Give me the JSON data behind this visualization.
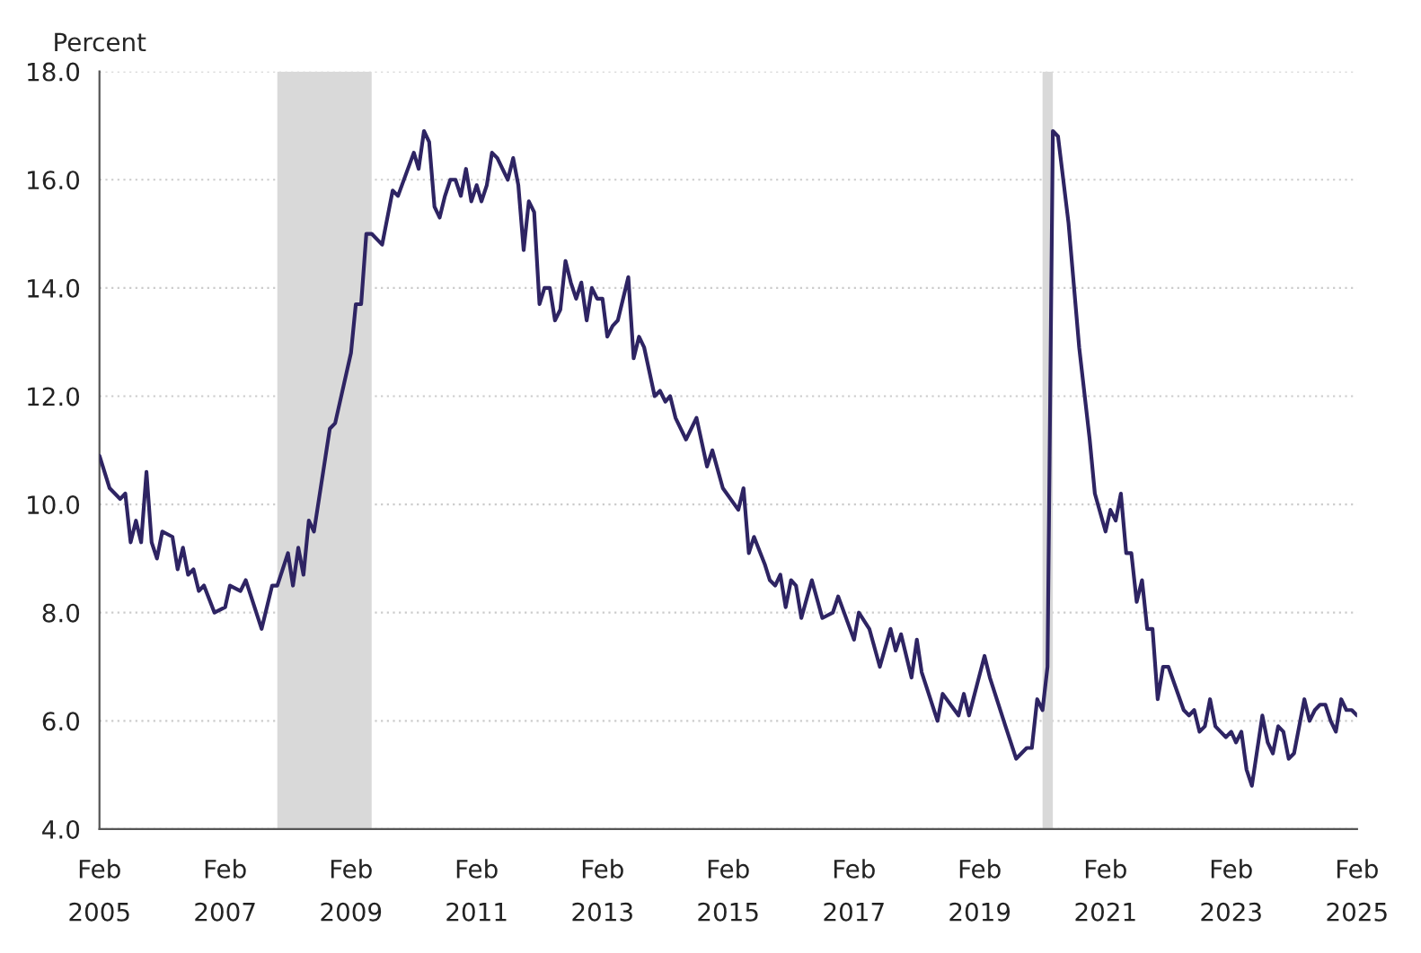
{
  "chart_data": {
    "type": "line",
    "ylabel": "Percent",
    "x": [
      "2005-02",
      "2005-04",
      "2005-06",
      "2005-07",
      "2005-08",
      "2005-09",
      "2005-10",
      "2005-11",
      "2005-12",
      "2006-01",
      "2006-02",
      "2006-04",
      "2006-05",
      "2006-06",
      "2006-07",
      "2006-08",
      "2006-09",
      "2006-10",
      "2006-12",
      "2007-02",
      "2007-03",
      "2007-05",
      "2007-06",
      "2007-09",
      "2007-11",
      "2007-12",
      "2008-02",
      "2008-03",
      "2008-04",
      "2008-05",
      "2008-06",
      "2008-07",
      "2008-10",
      "2008-11",
      "2009-02",
      "2009-03",
      "2009-04",
      "2009-05",
      "2009-06",
      "2009-08",
      "2009-10",
      "2009-11",
      "2010-02",
      "2010-03",
      "2010-04",
      "2010-05",
      "2010-06",
      "2010-07",
      "2010-08",
      "2010-09",
      "2010-10",
      "2010-11",
      "2010-12",
      "2011-01",
      "2011-02",
      "2011-03",
      "2011-04",
      "2011-05",
      "2011-06",
      "2011-07",
      "2011-08",
      "2011-09",
      "2011-10",
      "2011-11",
      "2011-12",
      "2012-01",
      "2012-02",
      "2012-03",
      "2012-04",
      "2012-05",
      "2012-06",
      "2012-07",
      "2012-08",
      "2012-09",
      "2012-10",
      "2012-11",
      "2012-12",
      "2013-01",
      "2013-02",
      "2013-03",
      "2013-04",
      "2013-05",
      "2013-07",
      "2013-08",
      "2013-09",
      "2013-10",
      "2013-12",
      "2014-01",
      "2014-02",
      "2014-03",
      "2014-04",
      "2014-06",
      "2014-08",
      "2014-10",
      "2014-11",
      "2015-01",
      "2015-04",
      "2015-05",
      "2015-06",
      "2015-07",
      "2015-09",
      "2015-10",
      "2015-11",
      "2015-12",
      "2016-01",
      "2016-02",
      "2016-03",
      "2016-04",
      "2016-06",
      "2016-08",
      "2016-10",
      "2016-11",
      "2017-02",
      "2017-03",
      "2017-05",
      "2017-07",
      "2017-09",
      "2017-10",
      "2017-11",
      "2018-01",
      "2018-02",
      "2018-03",
      "2018-06",
      "2018-07",
      "2018-10",
      "2018-11",
      "2018-12",
      "2019-03",
      "2019-04",
      "2019-07",
      "2019-09",
      "2019-11",
      "2019-12",
      "2020-01",
      "2020-02",
      "2020-03",
      "2020-04",
      "2020-05",
      "2020-07",
      "2020-09",
      "2020-11",
      "2020-12",
      "2021-02",
      "2021-03",
      "2021-04",
      "2021-05",
      "2021-06",
      "2021-07",
      "2021-08",
      "2021-09",
      "2021-10",
      "2021-11",
      "2021-12",
      "2022-01",
      "2022-02",
      "2022-05",
      "2022-06",
      "2022-07",
      "2022-08",
      "2022-09",
      "2022-10",
      "2022-11",
      "2022-12",
      "2023-01",
      "2023-02",
      "2023-03",
      "2023-04",
      "2023-05",
      "2023-06",
      "2023-08",
      "2023-09",
      "2023-10",
      "2023-11",
      "2023-12",
      "2024-01",
      "2024-02",
      "2024-04",
      "2024-05",
      "2024-06",
      "2024-07",
      "2024-08",
      "2024-09",
      "2024-10",
      "2024-11",
      "2024-12",
      "2025-01",
      "2025-02"
    ],
    "series": [
      {
        "color": "#2e2463",
        "values": [
          10.9,
          10.3,
          10.1,
          10.2,
          9.3,
          9.7,
          9.3,
          10.6,
          9.3,
          9.0,
          9.5,
          9.4,
          8.8,
          9.2,
          8.7,
          8.8,
          8.4,
          8.5,
          8.0,
          8.1,
          8.5,
          8.4,
          8.6,
          7.7,
          8.5,
          8.5,
          9.1,
          8.5,
          9.2,
          8.7,
          9.7,
          9.5,
          11.4,
          11.5,
          12.8,
          13.7,
          13.7,
          15.0,
          15.0,
          14.8,
          15.8,
          15.7,
          16.5,
          16.2,
          16.9,
          16.7,
          15.5,
          15.3,
          15.7,
          16.0,
          16.0,
          15.7,
          16.2,
          15.6,
          15.9,
          15.6,
          15.9,
          16.5,
          16.4,
          16.2,
          16.0,
          16.4,
          15.9,
          14.7,
          15.6,
          15.4,
          13.7,
          14.0,
          14.0,
          13.4,
          13.6,
          14.5,
          14.1,
          13.8,
          14.1,
          13.4,
          14.0,
          13.8,
          13.8,
          13.1,
          13.3,
          13.4,
          14.2,
          12.7,
          13.1,
          12.9,
          12.0,
          12.1,
          11.9,
          12.0,
          11.6,
          11.2,
          11.6,
          10.7,
          11.0,
          10.3,
          9.9,
          10.3,
          9.1,
          9.4,
          8.9,
          8.6,
          8.5,
          8.7,
          8.1,
          8.6,
          8.5,
          7.9,
          8.6,
          7.9,
          8.0,
          8.3,
          7.5,
          8.0,
          7.7,
          7.0,
          7.7,
          7.3,
          7.6,
          6.8,
          7.5,
          6.9,
          6.0,
          6.5,
          6.1,
          6.5,
          6.1,
          7.2,
          6.8,
          5.9,
          5.3,
          5.5,
          5.5,
          6.4,
          6.2,
          7.0,
          16.9,
          16.8,
          15.2,
          12.9,
          11.2,
          10.2,
          9.5,
          9.9,
          9.7,
          10.2,
          9.1,
          9.1,
          8.2,
          8.6,
          7.7,
          7.7,
          6.4,
          7.0,
          7.0,
          6.2,
          6.1,
          6.2,
          5.8,
          5.9,
          6.4,
          5.9,
          5.8,
          5.7,
          5.8,
          5.6,
          5.8,
          5.1,
          4.8,
          6.1,
          5.6,
          5.4,
          5.9,
          5.8,
          5.3,
          5.4,
          6.4,
          6.0,
          6.2,
          6.3,
          6.3,
          6.0,
          5.8,
          6.4,
          6.2,
          6.2,
          6.1
        ]
      }
    ],
    "xlim": [
      "2005-02",
      "2025-02"
    ],
    "xticks": [
      {
        "value": "2005-02",
        "label": "Feb\n2005"
      },
      {
        "value": "2007-02",
        "label": "Feb\n2007"
      },
      {
        "value": "2009-02",
        "label": "Feb\n2009"
      },
      {
        "value": "2011-02",
        "label": "Feb\n2011"
      },
      {
        "value": "2013-02",
        "label": "Feb\n2013"
      },
      {
        "value": "2015-02",
        "label": "Feb\n2015"
      },
      {
        "value": "2017-02",
        "label": "Feb\n2017"
      },
      {
        "value": "2019-02",
        "label": "Feb\n2019"
      },
      {
        "value": "2021-02",
        "label": "Feb\n2021"
      },
      {
        "value": "2023-02",
        "label": "Feb\n2023"
      },
      {
        "value": "2025-02",
        "label": "Feb\n2025"
      }
    ],
    "ylim": [
      4,
      18
    ],
    "yticks": [
      {
        "value": 4,
        "label": "4.0"
      },
      {
        "value": 6,
        "label": "6.0"
      },
      {
        "value": 8,
        "label": "8.0"
      },
      {
        "value": 10,
        "label": "10.0"
      },
      {
        "value": 12,
        "label": "12.0"
      },
      {
        "value": 14,
        "label": "14.0"
      },
      {
        "value": 16,
        "label": "16.0"
      },
      {
        "value": 18,
        "label": "18.0"
      }
    ],
    "bands": [
      {
        "axis": "x",
        "from": "2007-12",
        "to": "2009-06",
        "color": "#d9d9d9"
      },
      {
        "axis": "x",
        "from": "2020-02",
        "to": "2020-04",
        "color": "#d9d9d9"
      }
    ],
    "grid": "y",
    "line_style": "solid"
  }
}
